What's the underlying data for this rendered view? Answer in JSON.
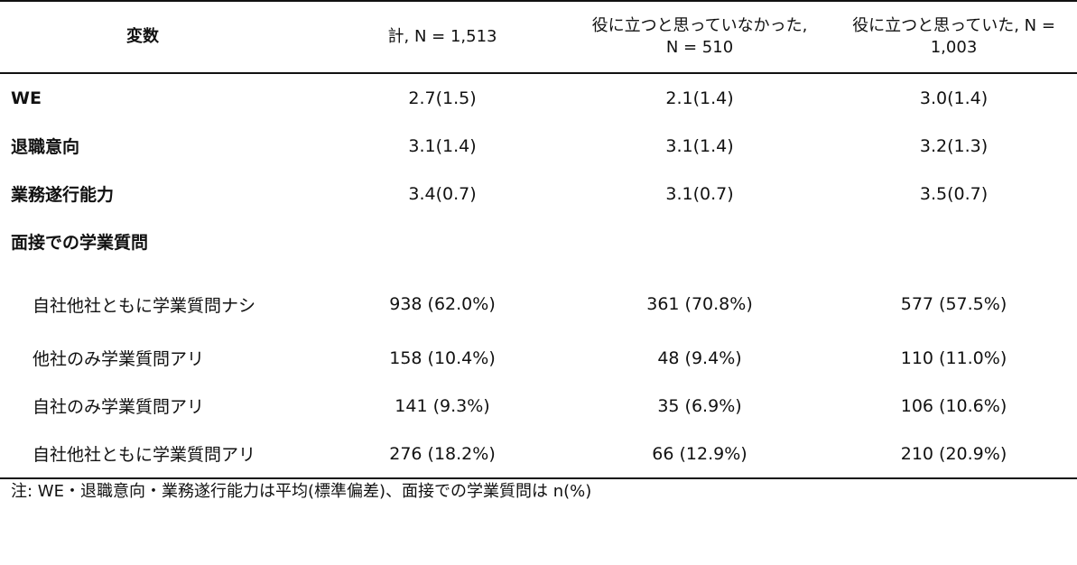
{
  "table": {
    "headers": [
      "変数",
      "計, N = 1,513",
      "役に立つと思っていなかった, N = 510",
      "役に立つと思っていた, N = 1,003"
    ],
    "header_lines": {
      "col2_line1": "役に立つと思っていなかった,",
      "col2_line2": "N = 510",
      "col3_line1": "役に立つと思っていた, N =",
      "col3_line2": "1,003"
    },
    "rows": [
      {
        "label": "WE",
        "values": [
          "2.7(1.5)",
          "2.1(1.4)",
          "3.0(1.4)"
        ]
      },
      {
        "label": "退職意向",
        "values": [
          "3.1(1.4)",
          "3.1(1.4)",
          "3.2(1.3)"
        ]
      },
      {
        "label": "業務遂行能力",
        "values": [
          "3.4(0.7)",
          "3.1(0.7)",
          "3.5(0.7)"
        ]
      }
    ],
    "category": {
      "label": "面接での学業質問",
      "items": [
        {
          "label": "自社他社ともに学業質問ナシ",
          "values": [
            "938 (62.0%)",
            "361 (70.8%)",
            "577 (57.5%)"
          ]
        },
        {
          "label": "他社のみ学業質問アリ",
          "values": [
            "158 (10.4%)",
            "48 (9.4%)",
            "110 (11.0%)"
          ]
        },
        {
          "label": "自社のみ学業質問アリ",
          "values": [
            "141 (9.3%)",
            "35 (6.9%)",
            "106 (10.6%)"
          ]
        },
        {
          "label": "自社他社ともに学業質問アリ",
          "values": [
            "276 (18.2%)",
            "66 (12.9%)",
            "210 (20.9%)"
          ]
        }
      ]
    }
  },
  "note": "注: WE・退職意向・業務遂行能力は平均(標準偏差)、面接での学業質問は n(%)"
}
